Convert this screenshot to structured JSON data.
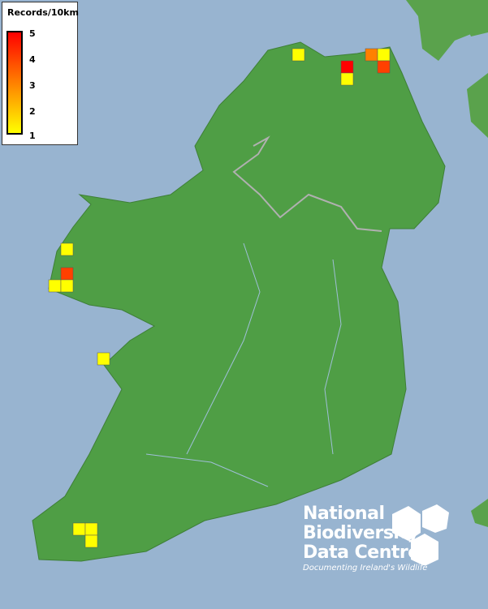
{
  "legend": {
    "title": "Records/10km",
    "ticks": [
      "5",
      "4",
      "3",
      "2",
      "1"
    ],
    "colors": [
      "#ff0000",
      "#ff8000",
      "#ffff00"
    ]
  },
  "records": [
    {
      "count": 1
    },
    {
      "count": 5
    },
    {
      "count": 1
    },
    {
      "count": 3
    },
    {
      "count": 1
    },
    {
      "count": 4
    },
    {
      "count": 1
    },
    {
      "count": 4
    },
    {
      "count": 1
    },
    {
      "count": 1
    },
    {
      "count": 1
    },
    {
      "count": 1
    },
    {
      "count": 1
    },
    {
      "count": 1
    }
  ],
  "colors": {
    "sea": "#98b4d0",
    "land": "#4f9e45",
    "border": "#b0b0b0"
  },
  "logo": {
    "line1": "National",
    "line2": "Biodiversity",
    "line3": "Data Centre",
    "tagline": "Documenting Ireland's Wildlife"
  }
}
